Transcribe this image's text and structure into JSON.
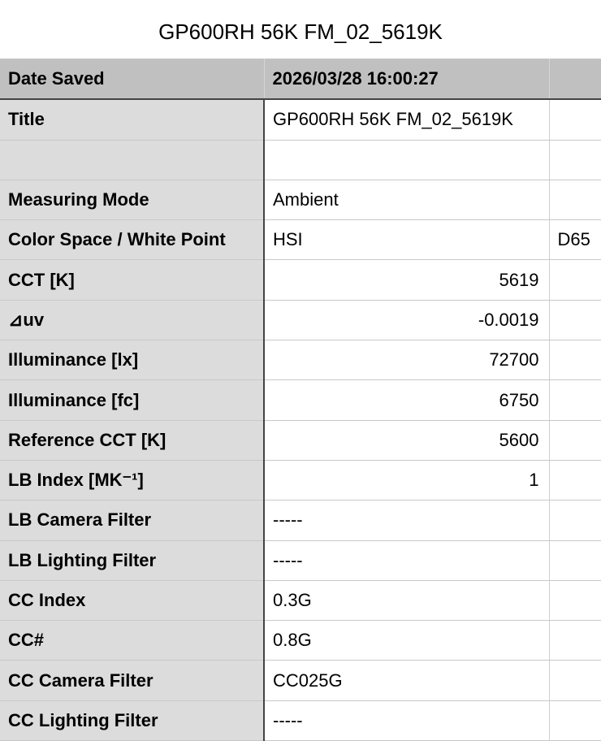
{
  "title": "GP600RH 56K FM_02_5619K",
  "header": {
    "label": "Date Saved",
    "value": "2026/03/28 16:00:27",
    "extra": ""
  },
  "rows": [
    {
      "label": "Title",
      "value": "GP600RH 56K FM_02_5619K",
      "extra": "",
      "align": "left"
    },
    {
      "label": "",
      "value": "",
      "extra": "",
      "align": "left"
    },
    {
      "label": "Measuring Mode",
      "value": "Ambient",
      "extra": "",
      "align": "left"
    },
    {
      "label": "Color Space / White Point",
      "value": "HSI",
      "extra": "D65",
      "align": "left"
    },
    {
      "label": "CCT [K]",
      "value": "5619",
      "extra": "",
      "align": "right"
    },
    {
      "label": "⊿uv",
      "value": "-0.0019",
      "extra": "",
      "align": "right"
    },
    {
      "label": "Illuminance [lx]",
      "value": "72700",
      "extra": "",
      "align": "right"
    },
    {
      "label": "Illuminance [fc]",
      "value": "6750",
      "extra": "",
      "align": "right"
    },
    {
      "label": "Reference CCT [K]",
      "value": "5600",
      "extra": "",
      "align": "right"
    },
    {
      "label": "LB Index [MK⁻¹]",
      "value": "1",
      "extra": "",
      "align": "right"
    },
    {
      "label": "LB Camera Filter",
      "value": "-----",
      "extra": "",
      "align": "left"
    },
    {
      "label": "LB Lighting Filter",
      "value": "-----",
      "extra": "",
      "align": "left"
    },
    {
      "label": "CC Index",
      "value": "0.3G",
      "extra": "",
      "align": "left"
    },
    {
      "label": "CC#",
      "value": "0.8G",
      "extra": "",
      "align": "left"
    },
    {
      "label": "CC Camera Filter",
      "value": "CC025G",
      "extra": "",
      "align": "left"
    },
    {
      "label": "CC Lighting Filter",
      "value": "-----",
      "extra": "",
      "align": "left"
    }
  ]
}
